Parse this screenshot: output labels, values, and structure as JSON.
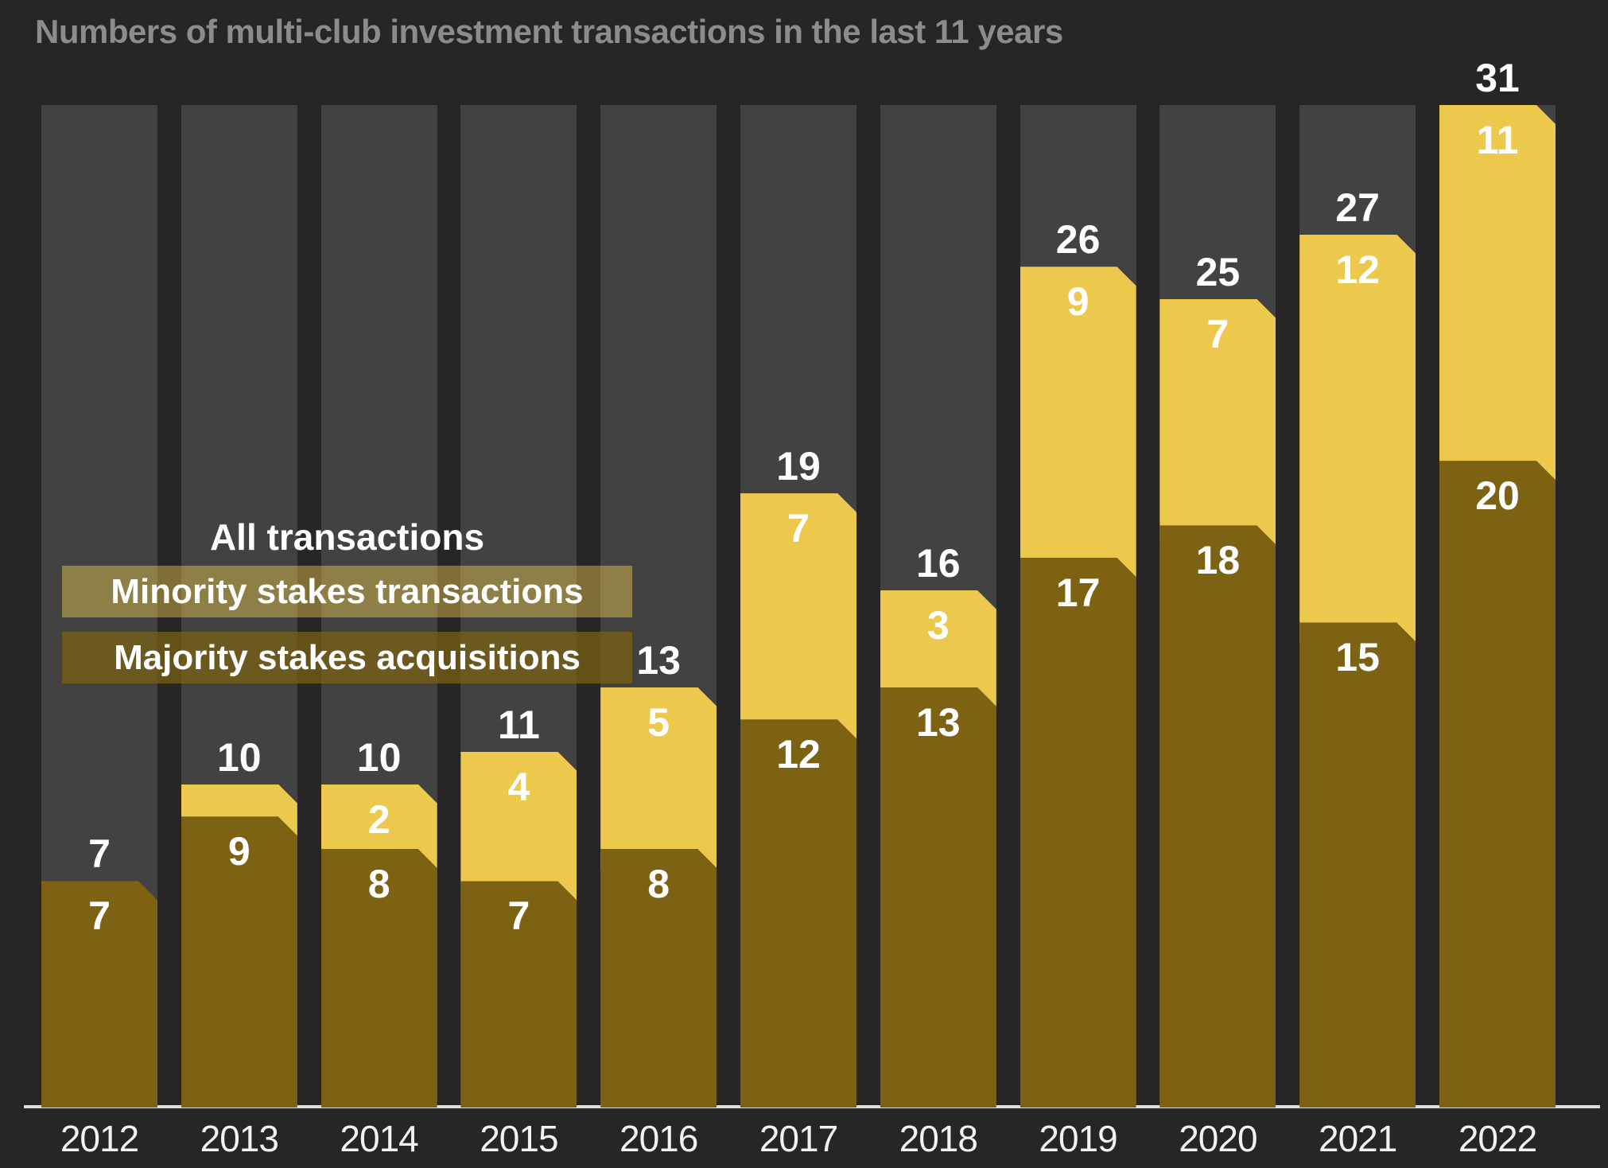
{
  "title": "Numbers of multi-club investment transactions in the last 11 years",
  "legend": {
    "all": "All transactions",
    "minority": "Minority stakes transactions",
    "majority": "Majority stakes acquisitions"
  },
  "colors": {
    "background": "#272525",
    "column_track": "#424242",
    "minority_segment": "#ecc94d",
    "majority_segment": "#7d6214",
    "axis_line": "#dcdcdc",
    "title_text": "#8c8c8c",
    "value_label_text": "#ffffff"
  },
  "chart_data": {
    "type": "bar",
    "stacked": true,
    "title": "Numbers of multi-club investment transactions in the last 11 years",
    "categories": [
      "2012",
      "2013",
      "2014",
      "2015",
      "2016",
      "2017",
      "2018",
      "2019",
      "2020",
      "2021",
      "2022"
    ],
    "series": [
      {
        "name": "Majority stakes acquisitions",
        "values": [
          7,
          9,
          8,
          7,
          8,
          12,
          13,
          17,
          18,
          15,
          20
        ]
      },
      {
        "name": "Minority stakes transactions",
        "values": [
          0,
          1,
          2,
          4,
          5,
          7,
          3,
          9,
          7,
          12,
          11
        ]
      }
    ],
    "totals": [
      7,
      10,
      10,
      11,
      13,
      19,
      16,
      26,
      25,
      27,
      31
    ],
    "xlabel": "",
    "ylabel": "",
    "ylim": [
      0,
      31
    ],
    "grid": false,
    "legend_position": "overlay middle-left",
    "value_labels": "total above each bar; segment values inside segments; minority segment label hidden when value < 2"
  }
}
